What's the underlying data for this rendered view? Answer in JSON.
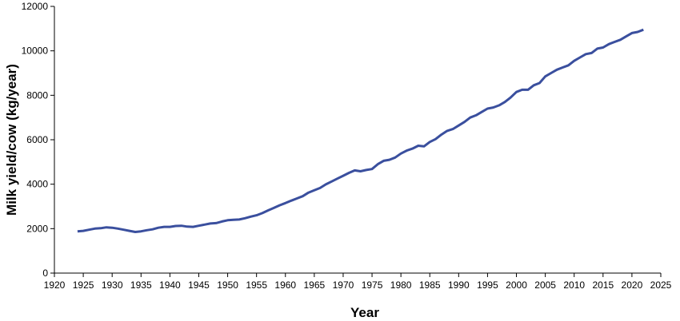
{
  "chart_data": {
    "type": "line",
    "x_label": "Year",
    "y_label": "Milk yield/cow (kg/year)",
    "x": [
      1924,
      1925,
      1926,
      1927,
      1928,
      1929,
      1930,
      1931,
      1932,
      1933,
      1934,
      1935,
      1936,
      1937,
      1938,
      1939,
      1940,
      1941,
      1942,
      1943,
      1944,
      1945,
      1946,
      1947,
      1948,
      1949,
      1950,
      1951,
      1952,
      1953,
      1954,
      1955,
      1956,
      1957,
      1958,
      1959,
      1960,
      1961,
      1962,
      1963,
      1964,
      1965,
      1966,
      1967,
      1968,
      1969,
      1970,
      1971,
      1972,
      1973,
      1974,
      1975,
      1976,
      1977,
      1978,
      1979,
      1980,
      1981,
      1982,
      1983,
      1984,
      1985,
      1986,
      1987,
      1988,
      1989,
      1990,
      1991,
      1992,
      1993,
      1994,
      1995,
      1996,
      1997,
      1998,
      1999,
      2000,
      2001,
      2002,
      2003,
      2004,
      2005,
      2006,
      2007,
      2008,
      2009,
      2010,
      2011,
      2012,
      2013,
      2014,
      2015,
      2016,
      2017,
      2018,
      2019,
      2020,
      2021,
      2022
    ],
    "series": [
      {
        "color": "#3a4f9e",
        "values": [
          1880,
          1900,
          1950,
          2000,
          2020,
          2060,
          2040,
          2000,
          1950,
          1900,
          1850,
          1880,
          1930,
          1970,
          2040,
          2080,
          2080,
          2120,
          2130,
          2090,
          2080,
          2130,
          2180,
          2230,
          2250,
          2320,
          2380,
          2400,
          2410,
          2470,
          2540,
          2600,
          2700,
          2820,
          2930,
          3050,
          3150,
          3260,
          3360,
          3460,
          3620,
          3730,
          3830,
          3990,
          4120,
          4250,
          4380,
          4510,
          4620,
          4580,
          4640,
          4680,
          4900,
          5050,
          5100,
          5200,
          5380,
          5510,
          5600,
          5730,
          5700,
          5900,
          6030,
          6230,
          6400,
          6480,
          6640,
          6800,
          7000,
          7100,
          7250,
          7400,
          7450,
          7550,
          7700,
          7900,
          8150,
          8250,
          8250,
          8450,
          8550,
          8850,
          9000,
          9150,
          9250,
          9350,
          9550,
          9700,
          9850,
          9900,
          10100,
          10150,
          10300,
          10400,
          10500,
          10650,
          10800,
          10850,
          10950
        ]
      }
    ],
    "xlim": [
      1920,
      2025
    ],
    "xticks": [
      1920,
      1925,
      1930,
      1935,
      1940,
      1945,
      1950,
      1955,
      1960,
      1965,
      1970,
      1975,
      1980,
      1985,
      1990,
      1995,
      2000,
      2005,
      2010,
      2015,
      2020,
      2025
    ],
    "ylim": [
      0,
      12000
    ],
    "yticks": [
      0,
      2000,
      4000,
      6000,
      8000,
      10000,
      12000
    ],
    "grid": false
  }
}
